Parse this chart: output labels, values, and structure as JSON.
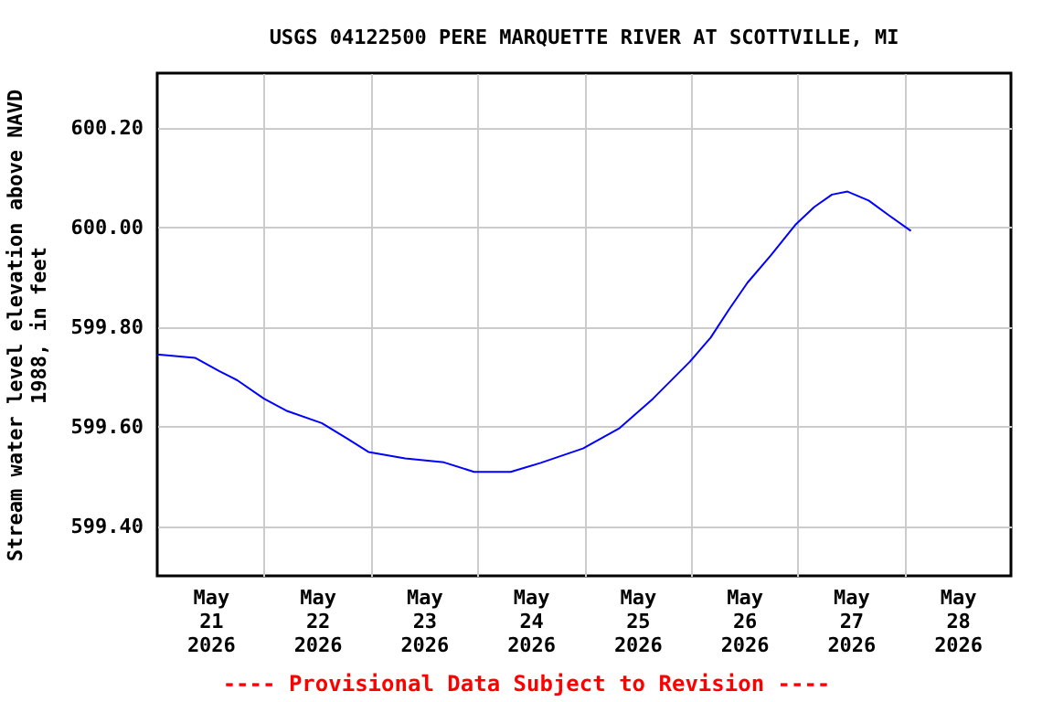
{
  "chart_data": {
    "type": "line",
    "title": "USGS 04122500 PERE MARQUETTE RIVER AT SCOTTVILLE, MI",
    "ylabel": "Stream water level elevation above NAVD 1988, in feet",
    "annotations": [
      "---- Provisional Data Subject to Revision ----"
    ],
    "x": [
      "2026-05-21T00:00",
      "2026-05-21T08:30",
      "2026-05-21T14:00",
      "2026-05-21T18:00",
      "2026-05-22T00:00",
      "2026-05-22T05:00",
      "2026-05-22T13:00",
      "2026-05-22T18:30",
      "2026-05-22T23:30",
      "2026-05-23T07:45",
      "2026-05-23T16:30",
      "2026-05-23T23:15",
      "2026-05-24T07:30",
      "2026-05-24T14:15",
      "2026-05-24T23:45",
      "2026-05-25T08:00",
      "2026-05-25T15:30",
      "2026-05-25T23:45",
      "2026-05-26T04:30",
      "2026-05-26T08:30",
      "2026-05-26T12:45",
      "2026-05-26T18:00",
      "2026-05-26T23:30",
      "2026-05-27T03:45",
      "2026-05-27T07:45",
      "2026-05-27T11:15",
      "2026-05-27T16:00",
      "2026-05-27T20:45",
      "2026-05-28T01:30"
    ],
    "series": [
      {
        "color": "#0000ff",
        "values": [
          599.745,
          599.738,
          599.711,
          599.693,
          599.656,
          599.632,
          599.607,
          599.577,
          599.549,
          599.536,
          599.528,
          599.509,
          599.509,
          599.527,
          599.556,
          599.597,
          599.656,
          599.73,
          599.779,
          599.834,
          599.889,
          599.944,
          600.005,
          600.041,
          600.066,
          600.072,
          600.054,
          600.023,
          599.993
        ]
      }
    ],
    "xlim": [
      "2026-05-21T00:00",
      "2026-05-29T00:00"
    ],
    "xticks": [
      {
        "value": "2026-05-22T00:00",
        "label": null
      },
      {
        "value": "2026-05-23T00:00",
        "label": null
      },
      {
        "value": "2026-05-24T00:00",
        "label": null
      },
      {
        "value": "2026-05-25T00:00",
        "label": null
      },
      {
        "value": "2026-05-26T00:00",
        "label": null
      },
      {
        "value": "2026-05-27T00:00",
        "label": null
      },
      {
        "value": "2026-05-28T00:00",
        "label": null
      },
      {
        "value": "2026-05-21T12:00",
        "label": "May 21 2026"
      },
      {
        "value": "2026-05-22T12:00",
        "label": "May 22 2026"
      },
      {
        "value": "2026-05-23T12:00",
        "label": "May 23 2026"
      },
      {
        "value": "2026-05-24T12:00",
        "label": "May 24 2026"
      },
      {
        "value": "2026-05-25T12:00",
        "label": "May 25 2026"
      },
      {
        "value": "2026-05-26T12:00",
        "label": "May 26 2026"
      },
      {
        "value": "2026-05-27T12:00",
        "label": "May 27 2026"
      },
      {
        "value": "2026-05-28T12:00",
        "label": "May 28 2026"
      }
    ],
    "ylim": [
      599.3,
      600.31
    ],
    "yticks": [
      {
        "value": 599.4,
        "label": "599.40"
      },
      {
        "value": 599.6,
        "label": "599.60"
      },
      {
        "value": 599.8,
        "label": "599.80"
      },
      {
        "value": 600.0,
        "label": "600.00"
      },
      {
        "value": 600.2,
        "label": "600.20"
      }
    ],
    "grid": true
  }
}
